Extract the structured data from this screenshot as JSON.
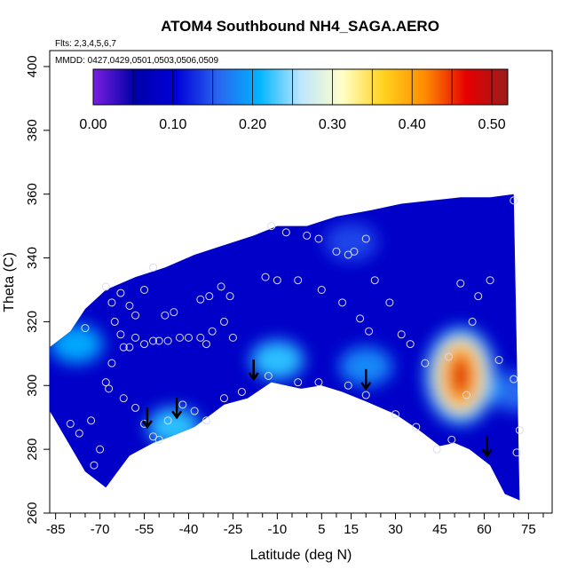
{
  "chart_data": {
    "type": "heatmap",
    "title": "ATOM4 Southbound NH4_SAGA.AERO",
    "xlabel": "Latitude (deg N)",
    "ylabel": "Theta (C)",
    "flights_note": "Flts: 2,3,4,5,6,7",
    "dates_note": "MMDD: 0427,0429,0501,0503,0506,0509",
    "xlim": [
      -87,
      83
    ],
    "ylim": [
      260,
      405
    ],
    "x_ticks": [
      -85,
      -70,
      -55,
      -40,
      -25,
      -10,
      5,
      15,
      30,
      45,
      60,
      75
    ],
    "x_minor_ticks": [
      -80,
      -75,
      -65,
      -60,
      -50,
      -45,
      -35,
      -30,
      -20,
      -15,
      -5,
      0,
      10,
      20,
      25,
      35,
      40,
      50,
      55,
      65,
      70,
      80
    ],
    "y_ticks": [
      260,
      280,
      300,
      320,
      340,
      360,
      380,
      400
    ],
    "colorbar": {
      "min": 0.0,
      "max": 0.52,
      "ticks": [
        "0.00",
        "0.10",
        "0.20",
        "0.30",
        "0.40",
        "0.50"
      ],
      "tick_values": [
        0.0,
        0.1,
        0.2,
        0.3,
        0.4,
        0.5
      ],
      "stops": [
        "#7a1fe0",
        "#0000a8",
        "#0000d8",
        "#2a64f0",
        "#00b4ff",
        "#bde6ff",
        "#ffffc8",
        "#ffd21e",
        "#ff8c00",
        "#e60000",
        "#9b1c1c"
      ]
    },
    "hot_spot": {
      "lat": 52,
      "theta": 303,
      "value": 0.48
    },
    "secondary_spots": [
      {
        "lat": -10,
        "theta": 308,
        "value": 0.22
      },
      {
        "lat": -78,
        "theta": 313,
        "value": 0.2
      },
      {
        "lat": -45,
        "theta": 287,
        "value": 0.22
      },
      {
        "lat": 20,
        "theta": 306,
        "value": 0.18
      },
      {
        "lat": 71,
        "theta": 298,
        "value": 0.16
      },
      {
        "lat": 15,
        "theta": 345,
        "value": 0.14
      }
    ],
    "surface_profile": [
      {
        "lat": -87,
        "theta": 292
      },
      {
        "lat": -75,
        "theta": 273
      },
      {
        "lat": -68,
        "theta": 268
      },
      {
        "lat": -60,
        "theta": 278
      },
      {
        "lat": -52,
        "theta": 282
      },
      {
        "lat": -46,
        "theta": 284
      },
      {
        "lat": -38,
        "theta": 287
      },
      {
        "lat": -28,
        "theta": 294
      },
      {
        "lat": -20,
        "theta": 296
      },
      {
        "lat": -12,
        "theta": 301
      },
      {
        "lat": -2,
        "theta": 299
      },
      {
        "lat": 5,
        "theta": 300
      },
      {
        "lat": 12,
        "theta": 298
      },
      {
        "lat": 20,
        "theta": 295
      },
      {
        "lat": 30,
        "theta": 291
      },
      {
        "lat": 38,
        "theta": 286
      },
      {
        "lat": 45,
        "theta": 281
      },
      {
        "lat": 50,
        "theta": 282
      },
      {
        "lat": 55,
        "theta": 280
      },
      {
        "lat": 62,
        "theta": 275
      },
      {
        "lat": 67,
        "theta": 266
      },
      {
        "lat": 72,
        "theta": 264
      }
    ],
    "top_profile": [
      {
        "lat": -87,
        "theta": 312
      },
      {
        "lat": -80,
        "theta": 317
      },
      {
        "lat": -75,
        "theta": 324
      },
      {
        "lat": -68,
        "theta": 330
      },
      {
        "lat": -58,
        "theta": 334
      },
      {
        "lat": -48,
        "theta": 337
      },
      {
        "lat": -38,
        "theta": 341
      },
      {
        "lat": -28,
        "theta": 344
      },
      {
        "lat": -18,
        "theta": 347
      },
      {
        "lat": -10,
        "theta": 350
      },
      {
        "lat": 0,
        "theta": 350
      },
      {
        "lat": 10,
        "theta": 353
      },
      {
        "lat": 22,
        "theta": 355
      },
      {
        "lat": 32,
        "theta": 357
      },
      {
        "lat": 42,
        "theta": 358
      },
      {
        "lat": 52,
        "theta": 359
      },
      {
        "lat": 62,
        "theta": 359
      },
      {
        "lat": 70,
        "theta": 360
      }
    ],
    "sample_points": [
      {
        "lat": -68,
        "theta": 331
      },
      {
        "lat": -66,
        "theta": 326
      },
      {
        "lat": -63,
        "theta": 329
      },
      {
        "lat": -60,
        "theta": 325
      },
      {
        "lat": -58,
        "theta": 322
      },
      {
        "lat": -55,
        "theta": 330
      },
      {
        "lat": -52,
        "theta": 337
      },
      {
        "lat": -48,
        "theta": 322
      },
      {
        "lat": -45,
        "theta": 323
      },
      {
        "lat": -65,
        "theta": 320
      },
      {
        "lat": -63,
        "theta": 316
      },
      {
        "lat": -62,
        "theta": 312
      },
      {
        "lat": -60,
        "theta": 312
      },
      {
        "lat": -58,
        "theta": 315
      },
      {
        "lat": -55,
        "theta": 313
      },
      {
        "lat": -52,
        "theta": 314
      },
      {
        "lat": -50,
        "theta": 314
      },
      {
        "lat": -47,
        "theta": 314
      },
      {
        "lat": -43,
        "theta": 315
      },
      {
        "lat": -40,
        "theta": 315
      },
      {
        "lat": -36,
        "theta": 327
      },
      {
        "lat": -33,
        "theta": 328
      },
      {
        "lat": -29,
        "theta": 331
      },
      {
        "lat": -26,
        "theta": 328
      },
      {
        "lat": -28,
        "theta": 320
      },
      {
        "lat": -32,
        "theta": 317
      },
      {
        "lat": -34,
        "theta": 313
      },
      {
        "lat": -36,
        "theta": 315
      },
      {
        "lat": -25,
        "theta": 315
      },
      {
        "lat": -12,
        "theta": 350
      },
      {
        "lat": -7,
        "theta": 348
      },
      {
        "lat": 0,
        "theta": 347
      },
      {
        "lat": 4,
        "theta": 346
      },
      {
        "lat": 10,
        "theta": 342
      },
      {
        "lat": 14,
        "theta": 341
      },
      {
        "lat": 16,
        "theta": 342
      },
      {
        "lat": 20,
        "theta": 346
      },
      {
        "lat": -14,
        "theta": 334
      },
      {
        "lat": -10,
        "theta": 333
      },
      {
        "lat": -3,
        "theta": 333
      },
      {
        "lat": 5,
        "theta": 330
      },
      {
        "lat": 12,
        "theta": 326
      },
      {
        "lat": 18,
        "theta": 321
      },
      {
        "lat": 21,
        "theta": 317
      },
      {
        "lat": 23,
        "theta": 333
      },
      {
        "lat": 28,
        "theta": 326
      },
      {
        "lat": 32,
        "theta": 316
      },
      {
        "lat": 35,
        "theta": 313
      },
      {
        "lat": -66,
        "theta": 307
      },
      {
        "lat": -68,
        "theta": 301
      },
      {
        "lat": -67,
        "theta": 299
      },
      {
        "lat": -62,
        "theta": 296
      },
      {
        "lat": -58,
        "theta": 293
      },
      {
        "lat": -55,
        "theta": 288
      },
      {
        "lat": -52,
        "theta": 284
      },
      {
        "lat": -50,
        "theta": 283
      },
      {
        "lat": -47,
        "theta": 289
      },
      {
        "lat": -42,
        "theta": 294
      },
      {
        "lat": -38,
        "theta": 292
      },
      {
        "lat": -34,
        "theta": 289
      },
      {
        "lat": -28,
        "theta": 296
      },
      {
        "lat": -22,
        "theta": 298
      },
      {
        "lat": -13,
        "theta": 303
      },
      {
        "lat": -3,
        "theta": 301
      },
      {
        "lat": 4,
        "theta": 301
      },
      {
        "lat": 14,
        "theta": 300
      },
      {
        "lat": 20,
        "theta": 297
      },
      {
        "lat": 30,
        "theta": 291
      },
      {
        "lat": 37,
        "theta": 287
      },
      {
        "lat": 44,
        "theta": 280
      },
      {
        "lat": 49,
        "theta": 283
      },
      {
        "lat": 56,
        "theta": 320
      },
      {
        "lat": 52,
        "theta": 332
      },
      {
        "lat": 58,
        "theta": 328
      },
      {
        "lat": 62,
        "theta": 333
      },
      {
        "lat": 65,
        "theta": 308
      },
      {
        "lat": 40,
        "theta": 307
      },
      {
        "lat": 48,
        "theta": 309
      },
      {
        "lat": 54,
        "theta": 297
      },
      {
        "lat": 70,
        "theta": 302
      },
      {
        "lat": 72,
        "theta": 286
      },
      {
        "lat": 71,
        "theta": 279
      },
      {
        "lat": 70,
        "theta": 358
      },
      {
        "lat": -75,
        "theta": 318
      },
      {
        "lat": -80,
        "theta": 288
      },
      {
        "lat": -77,
        "theta": 285
      },
      {
        "lat": -73,
        "theta": 289
      },
      {
        "lat": -70,
        "theta": 280
      },
      {
        "lat": -72,
        "theta": 275
      }
    ],
    "arrows": [
      {
        "lat": -54,
        "theta": 287
      },
      {
        "lat": -44,
        "theta": 290
      },
      {
        "lat": -18,
        "theta": 302
      },
      {
        "lat": 20,
        "theta": 299
      },
      {
        "lat": 61,
        "theta": 278
      }
    ]
  }
}
